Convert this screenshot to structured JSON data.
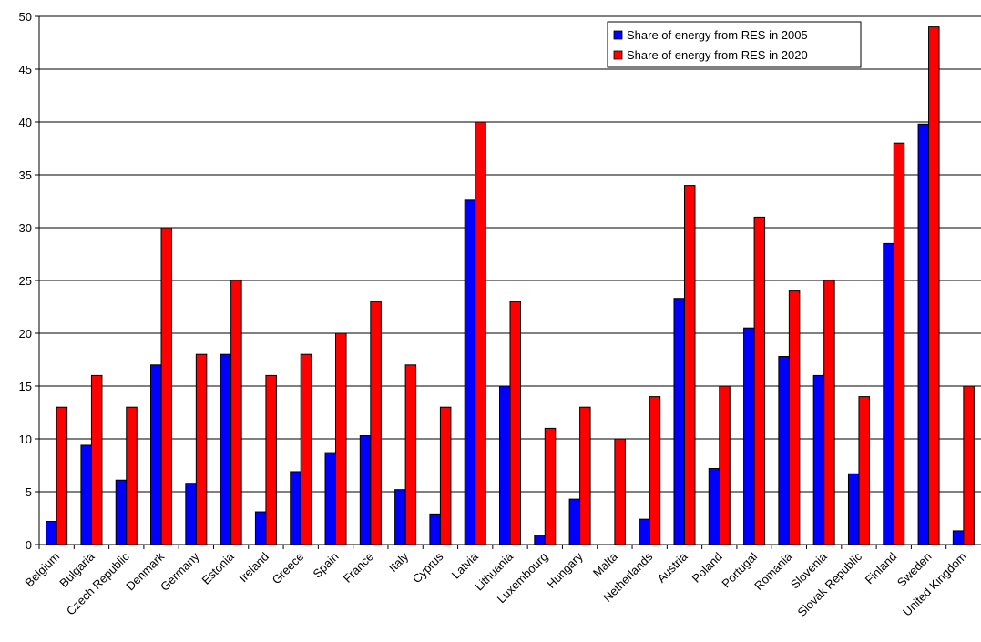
{
  "chart_data": {
    "type": "bar",
    "title": "",
    "xlabel": "",
    "ylabel": "",
    "ylim": [
      0,
      50
    ],
    "yticks": [
      0,
      5,
      10,
      15,
      20,
      25,
      30,
      35,
      40,
      45,
      50
    ],
    "grid": true,
    "legend_position": "top-right",
    "categories": [
      "Belgium",
      "Bulgaria",
      "Czech Republic",
      "Denmark",
      "Germany",
      "Estonia",
      "Ireland",
      "Greece",
      "Spain",
      "France",
      "Italy",
      "Cyprus",
      "Latvia",
      "Lithuania",
      "Luxembourg",
      "Hungary",
      "Malta",
      "Netherlands",
      "Austria",
      "Poland",
      "Portugal",
      "Romania",
      "Slovenia",
      "Slovak Republic",
      "Finland",
      "Sweden",
      "United Kingdom"
    ],
    "series": [
      {
        "name": "Share of energy from RES in 2005",
        "color": "#0000ff",
        "values": [
          2.2,
          9.4,
          6.1,
          17.0,
          5.8,
          18.0,
          3.1,
          6.9,
          8.7,
          10.3,
          5.2,
          2.9,
          32.6,
          15.0,
          0.9,
          4.3,
          0.0,
          2.4,
          23.3,
          7.2,
          20.5,
          17.8,
          16.0,
          6.7,
          28.5,
          39.8,
          1.3
        ]
      },
      {
        "name": "Share of energy from RES in 2020",
        "color": "#ff0000",
        "values": [
          13,
          16,
          13,
          30,
          18,
          25,
          16,
          18,
          20,
          23,
          17,
          13,
          40,
          23,
          11,
          13,
          10,
          14,
          34,
          15,
          31,
          24,
          25,
          14,
          38,
          49,
          15
        ]
      }
    ]
  }
}
